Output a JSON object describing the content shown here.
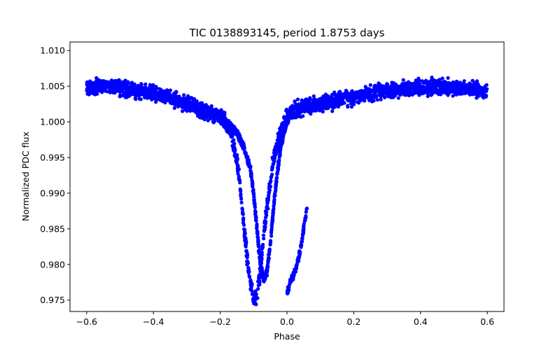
{
  "chart_data": {
    "type": "scatter",
    "title": "TIC 0138893145, period 1.8753 days",
    "xlabel": "Phase",
    "ylabel": "Normalized PDC flux",
    "xlim": [
      -0.65,
      0.65
    ],
    "ylim": [
      0.9734,
      1.0112
    ],
    "xticks": [
      -0.6,
      -0.4,
      -0.2,
      0.0,
      0.2,
      0.4,
      0.6
    ],
    "xtick_labels": [
      "−0.6",
      "−0.4",
      "−0.2",
      "0.0",
      "0.2",
      "0.4",
      "0.6"
    ],
    "yticks": [
      0.975,
      0.98,
      0.985,
      0.99,
      0.995,
      1.0,
      1.005,
      1.01
    ],
    "ytick_labels": [
      "0.975",
      "0.980",
      "0.985",
      "0.990",
      "0.995",
      "1.000",
      "1.005",
      "1.010"
    ],
    "grid": false,
    "marker_color": "#0000ff",
    "series": [
      {
        "x": [
          -0.6,
          -0.55,
          -0.5,
          -0.45,
          -0.4,
          -0.35,
          -0.3,
          -0.25,
          -0.2,
          -0.17,
          -0.15,
          -0.14,
          -0.13,
          -0.12,
          -0.11,
          -0.1,
          -0.09,
          -0.08,
          -0.07,
          -0.06,
          -0.05,
          -0.04,
          -0.03,
          -0.02,
          -0.01,
          0.0,
          0.02,
          0.05,
          0.1,
          0.15,
          0.2,
          0.25,
          0.3,
          0.35,
          0.4,
          0.45,
          0.5,
          0.55,
          0.6
        ],
        "y": [
          1.0048,
          1.005,
          1.0047,
          1.0044,
          1.004,
          1.0034,
          1.0025,
          1.0015,
          1.0007,
          0.999,
          0.9945,
          0.991,
          0.986,
          0.981,
          0.9775,
          0.975,
          0.9755,
          0.979,
          0.984,
          0.988,
          0.9915,
          0.995,
          0.9965,
          0.9985,
          0.9998,
          1.0005,
          1.0015,
          1.0022,
          1.0025,
          1.003,
          1.0035,
          1.004,
          1.0044,
          1.0047,
          1.0049,
          1.005,
          1.0048,
          1.0046,
          1.0042
        ],
        "note_band": []
      },
      {
        "x": [
          -0.2,
          -0.17,
          -0.15,
          -0.13,
          -0.11,
          -0.1,
          -0.09,
          -0.08,
          -0.07,
          -0.06,
          -0.05,
          -0.04,
          -0.03,
          -0.02,
          -0.01,
          0.0
        ],
        "y": [
          1.0007,
          0.9995,
          0.9985,
          0.9965,
          0.9935,
          0.99,
          0.985,
          0.98,
          0.978,
          0.979,
          0.983,
          0.988,
          0.9925,
          0.996,
          0.9985,
          1.0
        ]
      },
      {
        "x": [
          0.0,
          0.01,
          0.02,
          0.03,
          0.04,
          0.05,
          0.06
        ],
        "y": [
          0.976,
          0.9775,
          0.9785,
          0.98,
          0.982,
          0.985,
          0.988
        ]
      }
    ]
  }
}
